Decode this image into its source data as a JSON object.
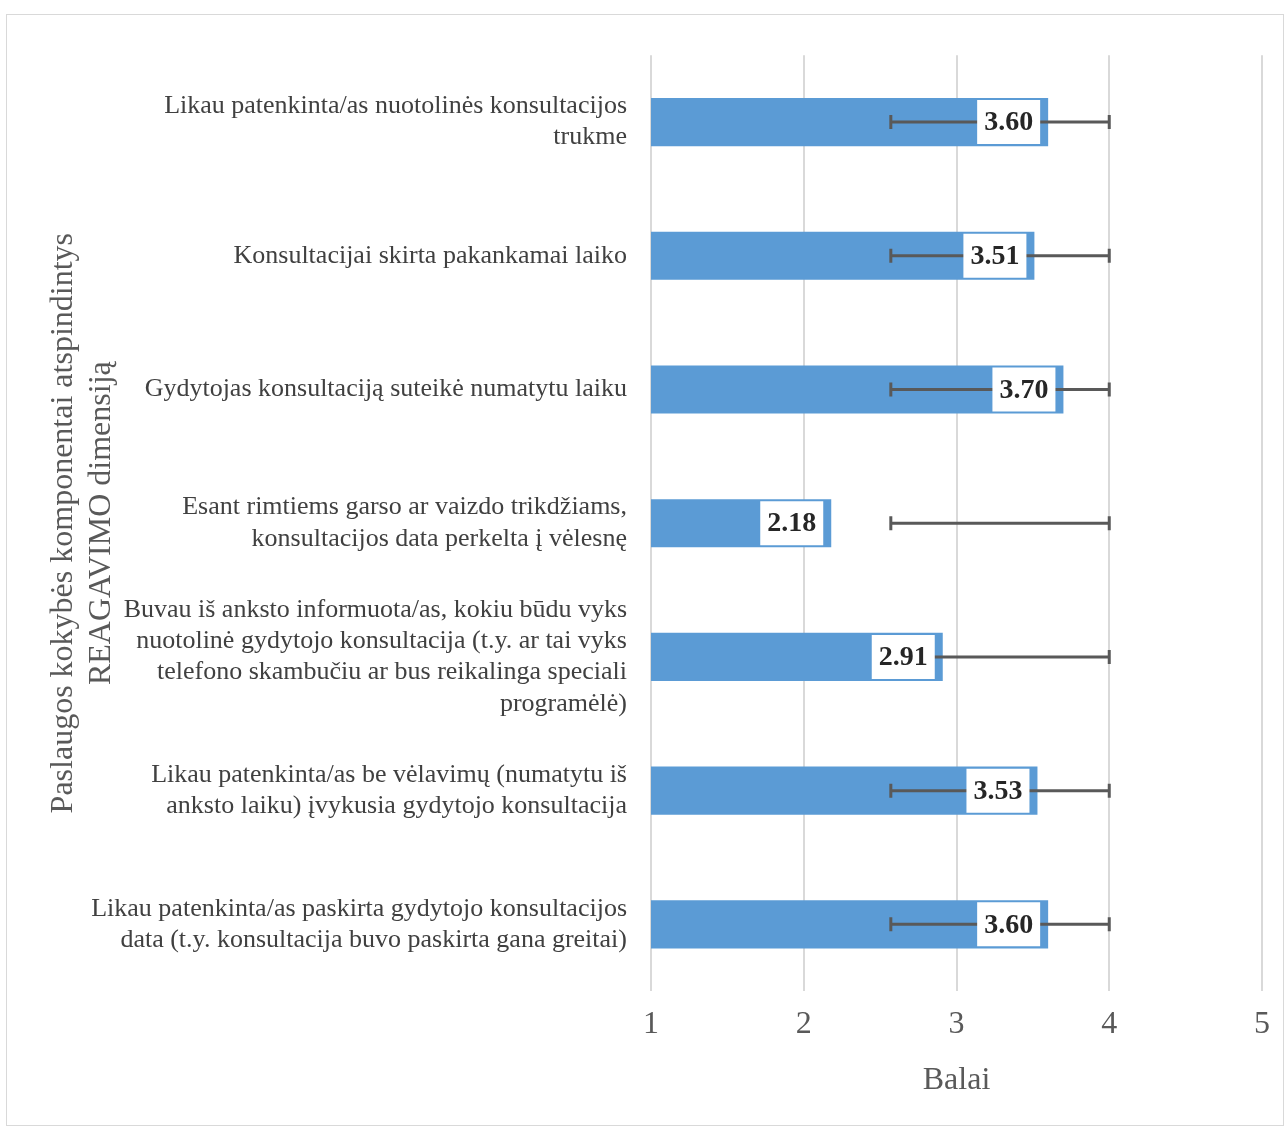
{
  "chart_data": {
    "type": "bar",
    "orientation": "horizontal",
    "ylabel": "Paslaugos kokybės komponentai atspindintys\nREAGAVIMO dimensiją",
    "xlabel": "Balai",
    "categories": [
      "Likau patenkinta/as nuotolinės konsultacijos trukme",
      "Konsultacijai skirta pakankamai laiko",
      "Gydytojas konsultaciją suteikė numatytu laiku",
      "Esant rimtiems garso ar vaizdo trikdžiams, konsultacijos data perkelta į vėlesnę",
      "Buvau iš anksto informuota/as, kokiu būdu vyks nuotolinė gydytojo konsultacija (t.y. ar tai vyks telefono skambučiu ar bus reikalinga speciali programėlė)",
      "Likau patenkinta/as be vėlavimų (numatytu iš anksto laiku) įvykusia gydytojo konsultacija",
      "Likau patenkinta/as paskirta gydytojo konsultacijos data (t.y. konsultacija buvo paskirta gana greitai)"
    ],
    "values": [
      3.6,
      3.51,
      3.7,
      2.18,
      2.91,
      3.53,
      3.6
    ],
    "errors": [
      [
        2.57,
        4.0
      ],
      [
        2.57,
        4.0
      ],
      [
        2.57,
        4.0
      ],
      [
        2.57,
        4.0
      ],
      [
        2.57,
        4.0
      ],
      [
        2.57,
        4.0
      ],
      [
        2.57,
        4.0
      ]
    ],
    "color": "#5b9bd5",
    "value_labels": [
      "3.60",
      "3.51",
      "3.70",
      "2.18",
      "2.91",
      "3.53",
      "3.60"
    ],
    "xlim": [
      1,
      5
    ],
    "xticks": [
      1,
      2,
      3,
      4,
      5
    ],
    "grid": "x",
    "legend": false
  }
}
